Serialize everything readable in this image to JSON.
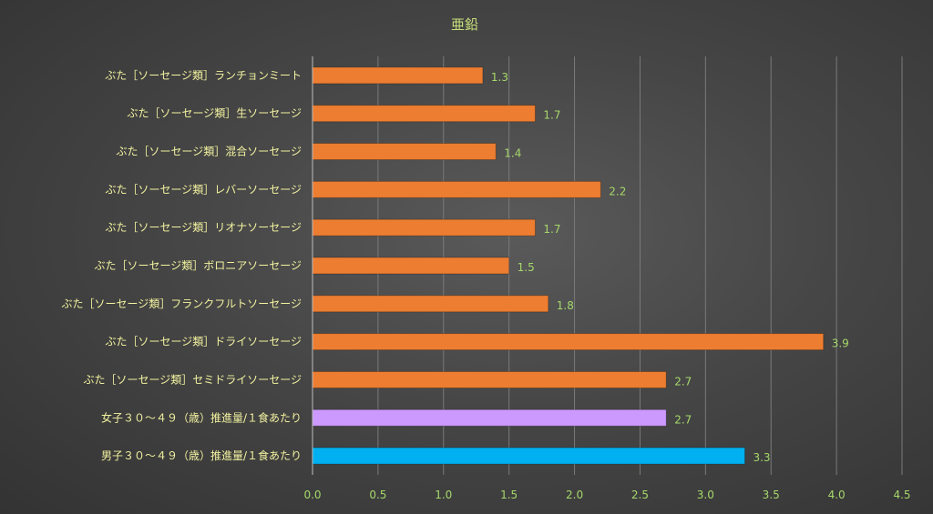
{
  "chart_data": {
    "type": "bar",
    "orientation": "horizontal",
    "title": "亜鉛",
    "xlabel": "",
    "ylabel": "",
    "xlim": [
      0,
      4.5
    ],
    "x_ticks": [
      "0.0",
      "0.5",
      "1.0",
      "1.5",
      "2.0",
      "2.5",
      "3.0",
      "3.5",
      "4.0",
      "4.5"
    ],
    "grid": true,
    "legend": "none",
    "categories": [
      "ぶた［ソーセージ類］ランチョンミート",
      "ぶた［ソーセージ類］生ソーセージ",
      "ぶた［ソーセージ類］混合ソーセージ",
      "ぶた［ソーセージ類］レバーソーセージ",
      "ぶた［ソーセージ類］リオナソーセージ",
      "ぶた［ソーセージ類］ボロニアソーセージ",
      "ぶた［ソーセージ類］フランクフルトソーセージ",
      "ぶた［ソーセージ類］ドライソーセージ",
      "ぶた［ソーセージ類］セミドライソーセージ",
      "女子３０～４９（歳）推進量/１食あたり",
      "男子３０～４９（歳）推進量/１食あたり"
    ],
    "values": [
      1.3,
      1.7,
      1.4,
      2.2,
      1.7,
      1.5,
      1.8,
      3.9,
      2.7,
      2.7,
      3.3
    ],
    "value_labels": [
      "1.3",
      "1.7",
      "1.4",
      "2.2",
      "1.7",
      "1.5",
      "1.8",
      "3.9",
      "2.7",
      "2.7",
      "3.3"
    ],
    "bar_colors": [
      "#ed7d31",
      "#ed7d31",
      "#ed7d31",
      "#ed7d31",
      "#ed7d31",
      "#ed7d31",
      "#ed7d31",
      "#ed7d31",
      "#ed7d31",
      "#cc99ff",
      "#00b0f0"
    ]
  }
}
